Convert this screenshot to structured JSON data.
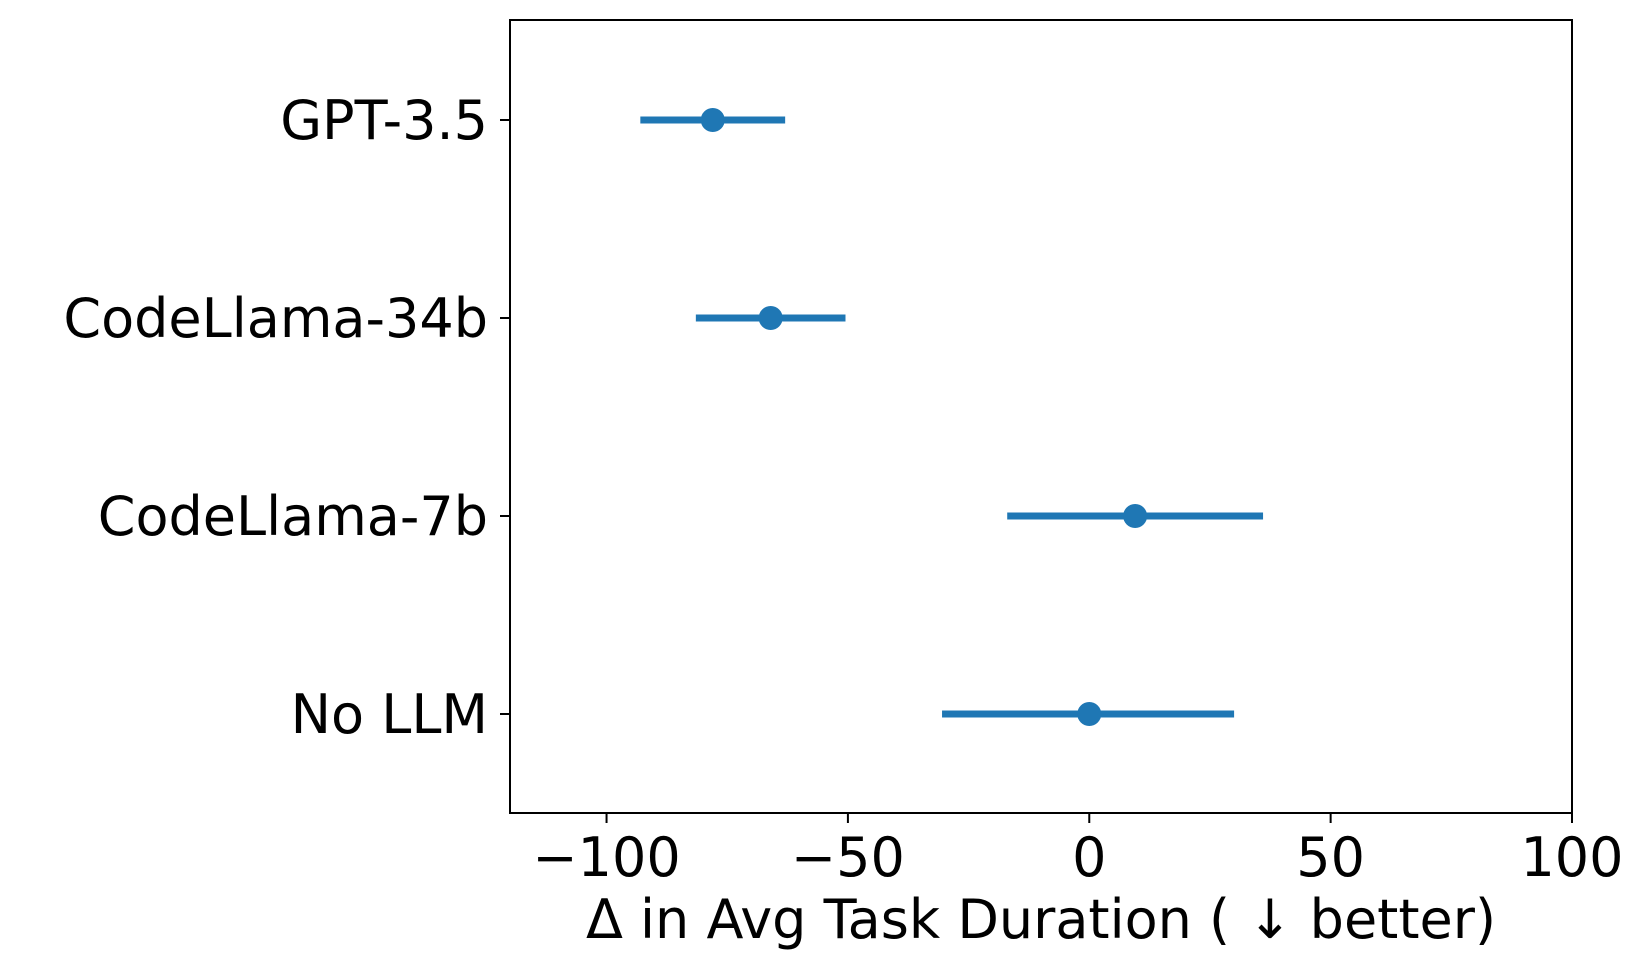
{
  "chart_data": {
    "type": "scatter",
    "subtype": "point-with-horizontal-error-bars",
    "title": "",
    "xlabel": "Δ in Avg Task Duration ( ↓  better)",
    "ylabel": "",
    "xlim": [
      -120,
      100
    ],
    "xticks": [
      -100,
      -50,
      0,
      50,
      100
    ],
    "xtick_labels": [
      "−100",
      "−50",
      "0",
      "50",
      "100"
    ],
    "categories": [
      "GPT-3.5",
      "CodeLlama-34b",
      "CodeLlama-7b",
      "No LLM"
    ],
    "values": [
      -78,
      -66,
      9.5,
      0
    ],
    "error_low": [
      -93,
      -81.5,
      -17,
      -30.5
    ],
    "error_high": [
      -63,
      -50.5,
      36,
      30
    ],
    "grid": false,
    "legend": "none",
    "colors": {
      "series": "#1f77b4",
      "axes": "#000000"
    }
  }
}
